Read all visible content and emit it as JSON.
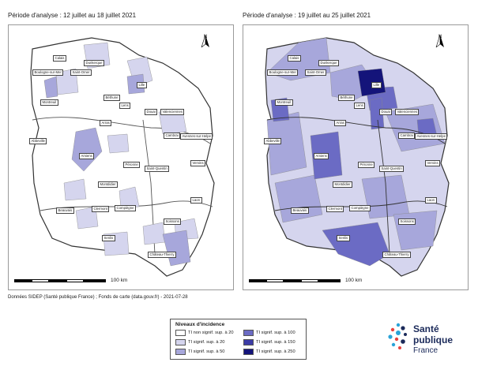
{
  "maps": [
    {
      "title": "Période d'analyse : 12 juillet au 18 juillet 2021",
      "cities": [
        "Calais",
        "Dunkerque",
        "Boulogne-sur-Mer",
        "Saint-Omer",
        "Lille",
        "Béthune",
        "Lens",
        "Montreuil",
        "Arras",
        "Douai",
        "Valenciennes",
        "Cambrai",
        "Avesnes-sur-Helpe",
        "Abbeville",
        "Amiens",
        "Péronne",
        "Saint-Quentin",
        "Vervins",
        "Montdidier",
        "Laon",
        "Beauvais",
        "Clermont",
        "Compiègne",
        "Soissons",
        "Senlis",
        "Château-Thierry"
      ]
    },
    {
      "title": "Période d'analyse : 19 juillet au 25 juillet 2021",
      "cities": [
        "Calais",
        "Dunkerque",
        "Boulogne-sur-Mer",
        "Saint-Omer",
        "Lille",
        "Béthune",
        "Lens",
        "Montreuil",
        "Arras",
        "Douai",
        "Valenciennes",
        "Cambrai",
        "Avesnes-sur-Helpe",
        "Abbeville",
        "Amiens",
        "Péronne",
        "Saint-Quentin",
        "Vervins",
        "Montdidier",
        "Laon",
        "Beauvais",
        "Clermont",
        "Compiègne",
        "Soissons",
        "Senlis",
        "Château-Thierry"
      ]
    }
  ],
  "north_label": "N",
  "scale_label": "100 km",
  "source": "Données SIDEP (Santé publique France) ; Fonds de carte (data.gouv.fr) - 2021-07-28",
  "legend": {
    "title": "Niveaux d'incidence",
    "items": [
      {
        "label": "TI non signif. sup. à 20",
        "color": "#ffffff"
      },
      {
        "label": "TI signif. sup. à 20",
        "color": "#d5d5ee"
      },
      {
        "label": "TI signif. sup. à 50",
        "color": "#a7a7db"
      },
      {
        "label": "TI signif. sup. à 100",
        "color": "#6b6bc4"
      },
      {
        "label": "TI signif. sup. à 150",
        "color": "#3c3ca6"
      },
      {
        "label": "TI signif. sup. à 250",
        "color": "#14147a"
      }
    ]
  },
  "logo": {
    "line1": "Santé",
    "line2": "publique",
    "line3": "France"
  }
}
